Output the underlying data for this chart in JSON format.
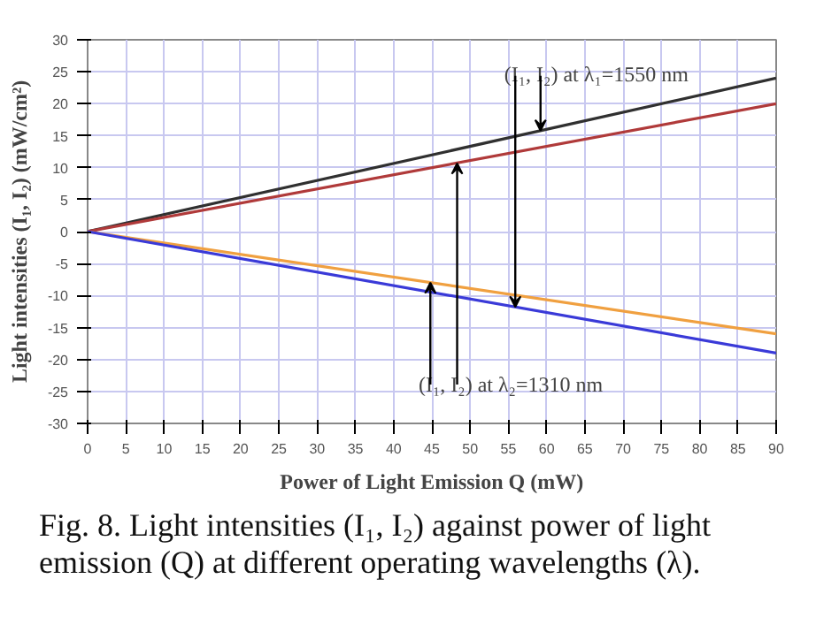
{
  "chart_data": {
    "type": "line",
    "xlabel": "Power of Light Emission Q (mW)",
    "ylabel": "Light intensities (I₁, I₂) (mW/cm²)",
    "x": [
      0,
      90
    ],
    "series": [
      {
        "color": "#303030",
        "values": [
          0,
          24
        ]
      },
      {
        "color": "#b03a3a",
        "values": [
          0,
          20
        ]
      },
      {
        "color": "#f0a040",
        "values": [
          0,
          -16
        ]
      },
      {
        "color": "#3a3ad8",
        "values": [
          0,
          -19
        ]
      }
    ],
    "xlim": [
      0,
      90
    ],
    "ylim": [
      -30,
      30
    ],
    "xticks": [
      0,
      5,
      10,
      15,
      20,
      25,
      30,
      35,
      40,
      45,
      50,
      55,
      60,
      65,
      70,
      75,
      80,
      85,
      90
    ],
    "yticks": [
      -30,
      -25,
      -20,
      -15,
      -10,
      -5,
      0,
      5,
      10,
      15,
      20,
      25,
      30
    ],
    "grid": true,
    "marker": "none",
    "line_style": "solid",
    "annotations": [
      {
        "text": "(I₁, I₂) at λ₁=1550 nm",
        "x": 59.2,
        "y": 15.8
      },
      {
        "text": "(I₁, I₂) at λ₂=1310 nm",
        "x": 48.3,
        "y": 10.7
      },
      "Fig. 8. Light intensities (I₁, I₂) against power of light emission (Q) at different operating wavelengths (λ)."
    ]
  }
}
